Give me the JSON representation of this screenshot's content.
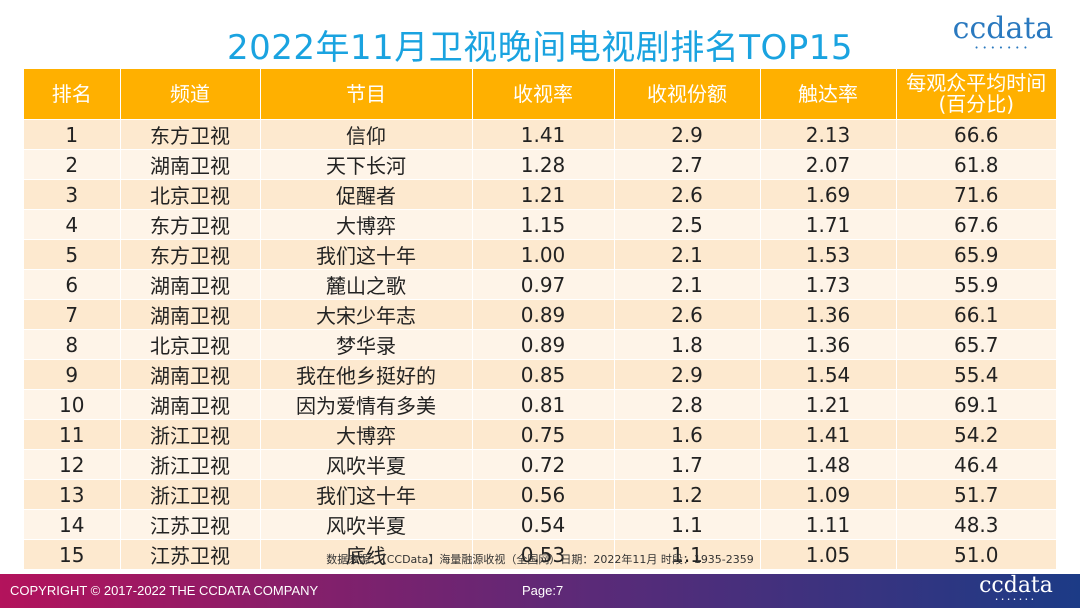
{
  "title": "2022年11月卫视晚间电视剧排名TOP15",
  "logo": {
    "text": "ccdata",
    "dots": "•••••••"
  },
  "table": {
    "headers": [
      "排名",
      "频道",
      "节目",
      "收视率",
      "收视份额",
      "触达率",
      "每观众平均时间(百分比)"
    ],
    "header_last_line1": "每观众平均时间",
    "header_last_line2": "(百分比)",
    "rows": [
      [
        "1",
        "东方卫视",
        "信仰",
        "1.41",
        "2.9",
        "2.13",
        "66.6"
      ],
      [
        "2",
        "湖南卫视",
        "天下长河",
        "1.28",
        "2.7",
        "2.07",
        "61.8"
      ],
      [
        "3",
        "北京卫视",
        "促醒者",
        "1.21",
        "2.6",
        "1.69",
        "71.6"
      ],
      [
        "4",
        "东方卫视",
        "大博弈",
        "1.15",
        "2.5",
        "1.71",
        "67.6"
      ],
      [
        "5",
        "东方卫视",
        "我们这十年",
        "1.00",
        "2.1",
        "1.53",
        "65.9"
      ],
      [
        "6",
        "湖南卫视",
        "麓山之歌",
        "0.97",
        "2.1",
        "1.73",
        "55.9"
      ],
      [
        "7",
        "湖南卫视",
        "大宋少年志",
        "0.89",
        "2.6",
        "1.36",
        "66.1"
      ],
      [
        "8",
        "北京卫视",
        "梦华录",
        "0.89",
        "1.8",
        "1.36",
        "65.7"
      ],
      [
        "9",
        "湖南卫视",
        "我在他乡挺好的",
        "0.85",
        "2.9",
        "1.54",
        "55.4"
      ],
      [
        "10",
        "湖南卫视",
        "因为爱情有多美",
        "0.81",
        "2.8",
        "1.21",
        "69.1"
      ],
      [
        "11",
        "浙江卫视",
        "大博弈",
        "0.75",
        "1.6",
        "1.41",
        "54.2"
      ],
      [
        "12",
        "浙江卫视",
        "风吹半夏",
        "0.72",
        "1.7",
        "1.48",
        "46.4"
      ],
      [
        "13",
        "浙江卫视",
        "我们这十年",
        "0.56",
        "1.2",
        "1.09",
        "51.7"
      ],
      [
        "14",
        "江苏卫视",
        "风吹半夏",
        "0.54",
        "1.1",
        "1.11",
        "48.3"
      ],
      [
        "15",
        "江苏卫视",
        "底线",
        "0.53",
        "1.1",
        "1.05",
        "51.0"
      ]
    ]
  },
  "source": "数据来源：【CCData】海量融源收视（全国网）日期：2022年11月 时段：1935-2359",
  "footer": {
    "copyright": "COPYRIGHT © 2017-2022 THE CCDATA COMPANY",
    "page": "Page:7",
    "logo_text": "ccdata",
    "logo_dots": "•••••••"
  }
}
